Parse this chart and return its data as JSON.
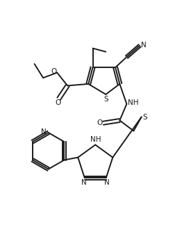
{
  "bg_color": "#ffffff",
  "line_color": "#1a1a1a",
  "line_width": 1.4,
  "figsize": [
    2.62,
    3.27
  ],
  "dpi": 100,
  "xlim": [
    0,
    10
  ],
  "ylim": [
    0,
    13
  ]
}
